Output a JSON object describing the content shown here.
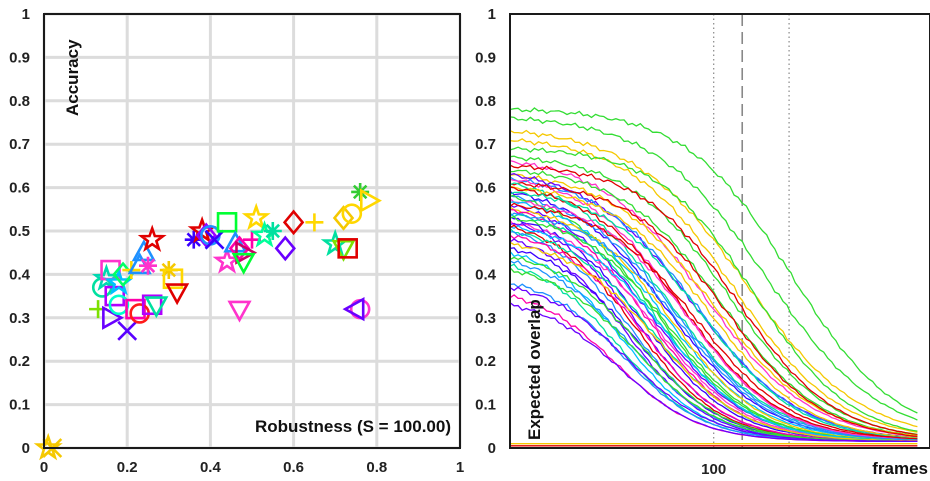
{
  "chart_data": [
    {
      "type": "scatter",
      "title": "",
      "xlabel": "Robustness (S = 100.00)",
      "ylabel": "Accuracy",
      "xlim": [
        0,
        1
      ],
      "ylim": [
        0,
        1
      ],
      "x_ticks": [
        "0",
        "0.2",
        "0.4",
        "0.6",
        "0.8",
        "1"
      ],
      "y_ticks": [
        "0",
        "0.1",
        "0.2",
        "0.3",
        "0.4",
        "0.5",
        "0.6",
        "0.7",
        "0.8",
        "0.9",
        "1"
      ],
      "grid": true,
      "points": [
        {
          "x": 0.01,
          "y": 0.0,
          "marker": "star",
          "color": "#F5C800"
        },
        {
          "x": 0.02,
          "y": 0.0,
          "marker": "x",
          "color": "#F5C800"
        },
        {
          "x": 0.13,
          "y": 0.32,
          "marker": "plus",
          "color": "#7CE000"
        },
        {
          "x": 0.14,
          "y": 0.37,
          "marker": "circle",
          "color": "#00E0A0"
        },
        {
          "x": 0.15,
          "y": 0.39,
          "marker": "star",
          "color": "#00D8B0"
        },
        {
          "x": 0.16,
          "y": 0.41,
          "marker": "square",
          "color": "#FF33CC"
        },
        {
          "x": 0.16,
          "y": 0.3,
          "marker": "tri-right",
          "color": "#6A00FF"
        },
        {
          "x": 0.17,
          "y": 0.35,
          "marker": "square",
          "color": "#B000FF"
        },
        {
          "x": 0.18,
          "y": 0.38,
          "marker": "star",
          "color": "#00C0FF"
        },
        {
          "x": 0.18,
          "y": 0.33,
          "marker": "circle",
          "color": "#00FFCC"
        },
        {
          "x": 0.19,
          "y": 0.4,
          "marker": "diamond",
          "color": "#00FF66"
        },
        {
          "x": 0.2,
          "y": 0.27,
          "marker": "x",
          "color": "#5A00FF"
        },
        {
          "x": 0.21,
          "y": 0.41,
          "marker": "plus",
          "color": "#FFD700"
        },
        {
          "x": 0.22,
          "y": 0.32,
          "marker": "square",
          "color": "#FF00AA"
        },
        {
          "x": 0.23,
          "y": 0.42,
          "marker": "tri-up",
          "color": "#1E90FF"
        },
        {
          "x": 0.23,
          "y": 0.31,
          "marker": "circle",
          "color": "#FF1A1A"
        },
        {
          "x": 0.24,
          "y": 0.45,
          "marker": "tri-up",
          "color": "#1E90FF"
        },
        {
          "x": 0.25,
          "y": 0.42,
          "marker": "asterisk",
          "color": "#FF33CC"
        },
        {
          "x": 0.26,
          "y": 0.48,
          "marker": "star",
          "color": "#E00000"
        },
        {
          "x": 0.26,
          "y": 0.33,
          "marker": "square",
          "color": "#B000FF"
        },
        {
          "x": 0.27,
          "y": 0.33,
          "marker": "tri-down",
          "color": "#00E0A0"
        },
        {
          "x": 0.3,
          "y": 0.41,
          "marker": "asterisk",
          "color": "#F5C800"
        },
        {
          "x": 0.31,
          "y": 0.39,
          "marker": "square",
          "color": "#FFD700"
        },
        {
          "x": 0.32,
          "y": 0.36,
          "marker": "tri-down",
          "color": "#E00000"
        },
        {
          "x": 0.36,
          "y": 0.48,
          "marker": "asterisk",
          "color": "#3A00FF"
        },
        {
          "x": 0.38,
          "y": 0.5,
          "marker": "star",
          "color": "#E00000"
        },
        {
          "x": 0.39,
          "y": 0.49,
          "marker": "diamond",
          "color": "#9900FF"
        },
        {
          "x": 0.4,
          "y": 0.49,
          "marker": "circle",
          "color": "#1E90FF"
        },
        {
          "x": 0.41,
          "y": 0.48,
          "marker": "x",
          "color": "#3A00FF"
        },
        {
          "x": 0.44,
          "y": 0.52,
          "marker": "square",
          "color": "#00FF33"
        },
        {
          "x": 0.44,
          "y": 0.43,
          "marker": "star",
          "color": "#FF33CC"
        },
        {
          "x": 0.46,
          "y": 0.47,
          "marker": "tri-up",
          "color": "#1E90FF"
        },
        {
          "x": 0.47,
          "y": 0.46,
          "marker": "diamond",
          "color": "#FF00AA"
        },
        {
          "x": 0.47,
          "y": 0.32,
          "marker": "tri-down",
          "color": "#FF33CC"
        },
        {
          "x": 0.48,
          "y": 0.45,
          "marker": "tri-right",
          "color": "#CC0066"
        },
        {
          "x": 0.48,
          "y": 0.43,
          "marker": "tri-down",
          "color": "#00FF33"
        },
        {
          "x": 0.5,
          "y": 0.48,
          "marker": "plus",
          "color": "#FF00AA"
        },
        {
          "x": 0.51,
          "y": 0.53,
          "marker": "star",
          "color": "#FFD700"
        },
        {
          "x": 0.53,
          "y": 0.49,
          "marker": "star",
          "color": "#00FF99"
        },
        {
          "x": 0.55,
          "y": 0.5,
          "marker": "asterisk",
          "color": "#00E0A0"
        },
        {
          "x": 0.58,
          "y": 0.46,
          "marker": "diamond",
          "color": "#6A00FF"
        },
        {
          "x": 0.6,
          "y": 0.52,
          "marker": "diamond",
          "color": "#E00000"
        },
        {
          "x": 0.65,
          "y": 0.52,
          "marker": "plus",
          "color": "#FFD700"
        },
        {
          "x": 0.7,
          "y": 0.47,
          "marker": "star",
          "color": "#00E0A0"
        },
        {
          "x": 0.72,
          "y": 0.53,
          "marker": "diamond",
          "color": "#F5C800"
        },
        {
          "x": 0.72,
          "y": 0.46,
          "marker": "tri-down",
          "color": "#7CE000"
        },
        {
          "x": 0.73,
          "y": 0.46,
          "marker": "square",
          "color": "#E00000"
        },
        {
          "x": 0.74,
          "y": 0.54,
          "marker": "circle",
          "color": "#FFD700"
        },
        {
          "x": 0.76,
          "y": 0.59,
          "marker": "asterisk",
          "color": "#33CC33"
        },
        {
          "x": 0.78,
          "y": 0.57,
          "marker": "tri-right",
          "color": "#FFD700"
        },
        {
          "x": 0.76,
          "y": 0.32,
          "marker": "circle",
          "color": "#FF33CC"
        },
        {
          "x": 0.75,
          "y": 0.32,
          "marker": "tri-left",
          "color": "#6A00FF"
        }
      ]
    },
    {
      "type": "line",
      "title": "",
      "xlabel": "frames",
      "ylabel": "Expected overlap",
      "xlim": [
        0,
        200
      ],
      "ylim": [
        0,
        1
      ],
      "x_ticks": [
        "100"
      ],
      "y_ticks": [
        "0",
        "0.1",
        "0.2",
        "0.3",
        "0.4",
        "0.5",
        "0.6",
        "0.7",
        "0.8",
        "0.9",
        "1"
      ],
      "grid": false,
      "reference_lines": [
        {
          "x": 100,
          "style": "dotted"
        },
        {
          "x": 114,
          "style": "dashed"
        },
        {
          "x": 137,
          "style": "dotted"
        }
      ],
      "series_note": "approx. 50 expected-overlap curves; each decays from its value at frame 0 to near 0.02 by frame 200",
      "series": [
        {
          "start": 0.78,
          "x50": 138,
          "k": 26,
          "color": "#33DD33"
        },
        {
          "start": 0.76,
          "x50": 126,
          "k": 28,
          "color": "#33DD33"
        },
        {
          "start": 0.73,
          "x50": 116,
          "k": 28,
          "color": "#F5C800"
        },
        {
          "start": 0.71,
          "x50": 110,
          "k": 26,
          "color": "#F5C800"
        },
        {
          "start": 0.69,
          "x50": 120,
          "k": 24,
          "color": "#33DD33"
        },
        {
          "start": 0.67,
          "x50": 108,
          "k": 25,
          "color": "#33DD33"
        },
        {
          "start": 0.66,
          "x50": 96,
          "k": 26,
          "color": "#FF33CC"
        },
        {
          "start": 0.65,
          "x50": 112,
          "k": 24,
          "color": "#E00000"
        },
        {
          "start": 0.64,
          "x50": 104,
          "k": 25,
          "color": "#33DD33"
        },
        {
          "start": 0.63,
          "x50": 100,
          "k": 26,
          "color": "#F5C800"
        },
        {
          "start": 0.63,
          "x50": 90,
          "k": 26,
          "color": "#6A00FF"
        },
        {
          "start": 0.62,
          "x50": 92,
          "k": 25,
          "color": "#1E90FF"
        },
        {
          "start": 0.62,
          "x50": 84,
          "k": 24,
          "color": "#FF33CC"
        },
        {
          "start": 0.61,
          "x50": 106,
          "k": 24,
          "color": "#E00000"
        },
        {
          "start": 0.61,
          "x50": 80,
          "k": 25,
          "color": "#00E0A0"
        },
        {
          "start": 0.6,
          "x50": 98,
          "k": 24,
          "color": "#F5C800"
        },
        {
          "start": 0.6,
          "x50": 86,
          "k": 24,
          "color": "#E00000"
        },
        {
          "start": 0.59,
          "x50": 78,
          "k": 24,
          "color": "#3A00FF"
        },
        {
          "start": 0.59,
          "x50": 94,
          "k": 24,
          "color": "#00E0A0"
        },
        {
          "start": 0.58,
          "x50": 82,
          "k": 24,
          "color": "#1E90FF"
        },
        {
          "start": 0.58,
          "x50": 72,
          "k": 23,
          "color": "#33DD33"
        },
        {
          "start": 0.57,
          "x50": 88,
          "k": 23,
          "color": "#FF33CC"
        },
        {
          "start": 0.57,
          "x50": 76,
          "k": 24,
          "color": "#00C0FF"
        },
        {
          "start": 0.56,
          "x50": 70,
          "k": 23,
          "color": "#6A00FF"
        },
        {
          "start": 0.56,
          "x50": 92,
          "k": 24,
          "color": "#E00000"
        },
        {
          "start": 0.55,
          "x50": 80,
          "k": 22,
          "color": "#F5C800"
        },
        {
          "start": 0.55,
          "x50": 68,
          "k": 22,
          "color": "#FF00AA"
        },
        {
          "start": 0.54,
          "x50": 74,
          "k": 22,
          "color": "#00E0A0"
        },
        {
          "start": 0.54,
          "x50": 84,
          "k": 23,
          "color": "#1E90FF"
        },
        {
          "start": 0.53,
          "x50": 66,
          "k": 22,
          "color": "#3A00FF"
        },
        {
          "start": 0.53,
          "x50": 78,
          "k": 22,
          "color": "#33DD33"
        },
        {
          "start": 0.52,
          "x50": 72,
          "k": 22,
          "color": "#FF33CC"
        },
        {
          "start": 0.52,
          "x50": 64,
          "k": 21,
          "color": "#6A00FF"
        },
        {
          "start": 0.51,
          "x50": 76,
          "k": 22,
          "color": "#00C0FF"
        },
        {
          "start": 0.51,
          "x50": 62,
          "k": 21,
          "color": "#E00000"
        },
        {
          "start": 0.5,
          "x50": 70,
          "k": 22,
          "color": "#00E0A0"
        },
        {
          "start": 0.5,
          "x50": 60,
          "k": 21,
          "color": "#1E90FF"
        },
        {
          "start": 0.49,
          "x50": 66,
          "k": 21,
          "color": "#FF00AA"
        },
        {
          "start": 0.48,
          "x50": 58,
          "k": 20,
          "color": "#6A00FF"
        },
        {
          "start": 0.47,
          "x50": 72,
          "k": 22,
          "color": "#F5C800"
        },
        {
          "start": 0.46,
          "x50": 62,
          "k": 21,
          "color": "#3A00FF"
        },
        {
          "start": 0.45,
          "x50": 56,
          "k": 20,
          "color": "#00C0FF"
        },
        {
          "start": 0.44,
          "x50": 64,
          "k": 21,
          "color": "#33DD33"
        },
        {
          "start": 0.43,
          "x50": 60,
          "k": 21,
          "color": "#1E90FF"
        },
        {
          "start": 0.42,
          "x50": 54,
          "k": 20,
          "color": "#00E0A0"
        },
        {
          "start": 0.41,
          "x50": 62,
          "k": 21,
          "color": "#33DD33"
        },
        {
          "start": 0.38,
          "x50": 56,
          "k": 20,
          "color": "#1E90FF"
        },
        {
          "start": 0.37,
          "x50": 58,
          "k": 21,
          "color": "#6A00FF"
        },
        {
          "start": 0.35,
          "x50": 52,
          "k": 20,
          "color": "#FF00AA"
        },
        {
          "start": 0.33,
          "x50": 54,
          "k": 20,
          "color": "#6A00FF"
        },
        {
          "start": 0.01,
          "x50": 1000,
          "k": 50,
          "color": "#F5C800"
        },
        {
          "start": 0.005,
          "x50": 1000,
          "k": 50,
          "color": "#E00000"
        }
      ]
    }
  ]
}
